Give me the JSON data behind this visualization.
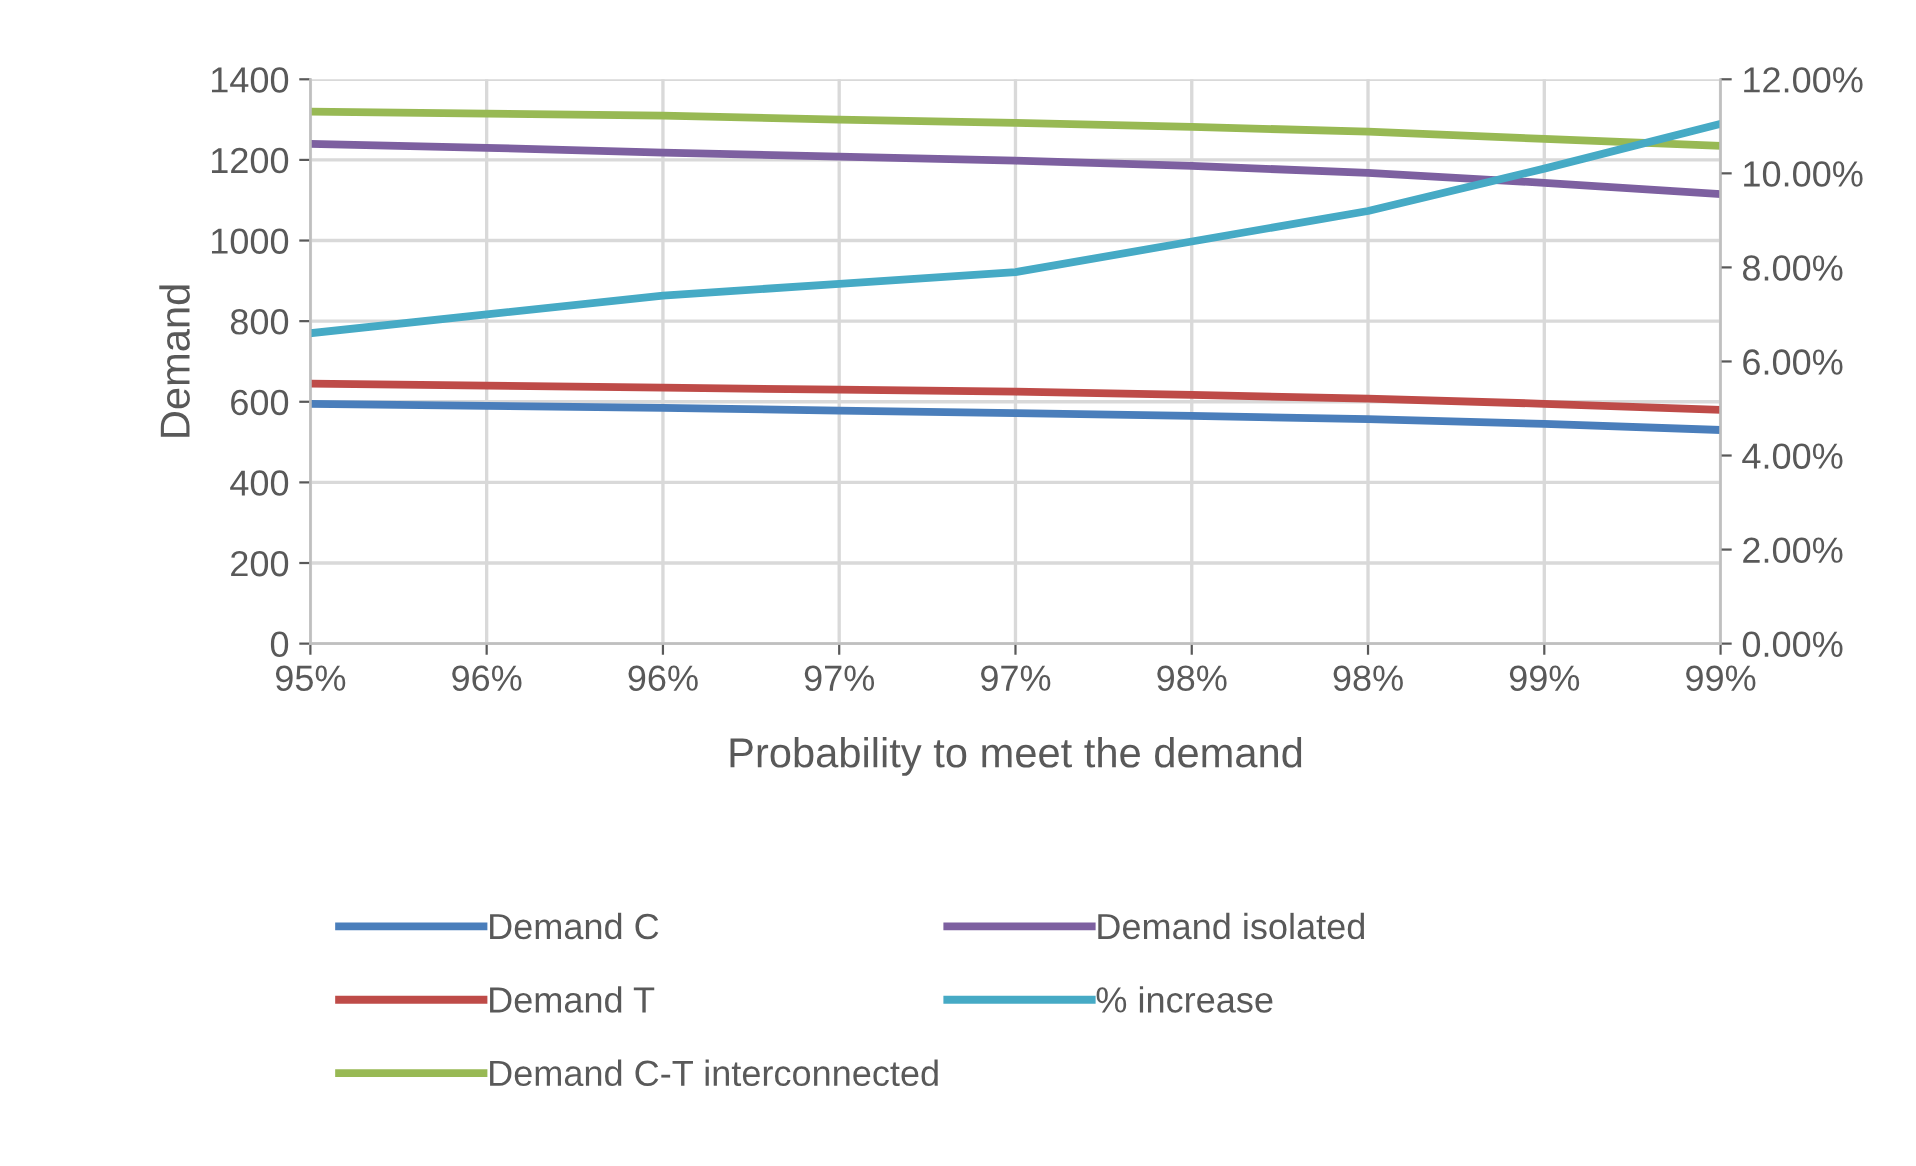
{
  "chart_data": {
    "type": "line",
    "xlabel": "Probability to meet the demand",
    "ylabel": "Demand",
    "categories": [
      "95%",
      "96%",
      "96%",
      "97%",
      "97%",
      "98%",
      "98%",
      "99%",
      "99%"
    ],
    "series": [
      {
        "name": "Demand C",
        "color": "#4a7ebb",
        "values": [
          595,
          590,
          585,
          578,
          572,
          565,
          557,
          545,
          530
        ]
      },
      {
        "name": "Demand T",
        "color": "#be4b48",
        "values": [
          645,
          640,
          635,
          630,
          625,
          617,
          608,
          595,
          580
        ]
      },
      {
        "name": "Demand C-T interconnected",
        "color": "#98b954",
        "values": [
          1320,
          1315,
          1310,
          1300,
          1292,
          1282,
          1270,
          1252,
          1235
        ]
      },
      {
        "name": "Demand isolated",
        "color": "#7d60a0",
        "values": [
          1240,
          1230,
          1218,
          1208,
          1198,
          1185,
          1168,
          1143,
          1115
        ]
      },
      {
        "name": "% increase",
        "color": "#46aac5",
        "axis": "y2",
        "values": [
          6.6,
          7.0,
          7.4,
          7.65,
          7.9,
          8.55,
          9.2,
          10.1,
          11.05
        ]
      }
    ],
    "ylim": [
      0,
      1400
    ],
    "yticks": [
      0,
      200,
      400,
      600,
      800,
      1000,
      1200,
      1400
    ],
    "y2lim": [
      0,
      12
    ],
    "y2ticks": [
      {
        "value": 0,
        "label": "0.00%"
      },
      {
        "value": 2,
        "label": "2.00%"
      },
      {
        "value": 4,
        "label": "4.00%"
      },
      {
        "value": 6,
        "label": "6.00%"
      },
      {
        "value": 8,
        "label": "8.00%"
      },
      {
        "value": 10,
        "label": "10.00%"
      },
      {
        "value": 12,
        "label": "12.00%"
      }
    ],
    "grid": true,
    "legend": "bottom"
  }
}
